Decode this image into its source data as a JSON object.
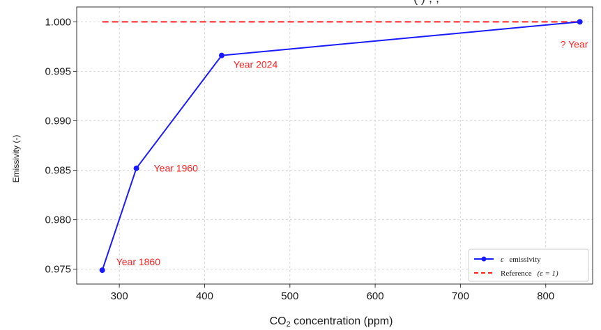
{
  "chart_data": {
    "type": "line",
    "title": "",
    "title_fragment": "(  ) ,    ,",
    "xlabel": "CO₂ concentration (ppm)",
    "xlabel_main": "CO",
    "xlabel_sub": "2",
    "xlabel_rest": " concentration (ppm)",
    "ylabel": "Emissivity (-)",
    "xlim": [
      250,
      855
    ],
    "ylim": [
      0.9735,
      1.0015
    ],
    "x_ticks": [
      300,
      400,
      500,
      600,
      700,
      800
    ],
    "x_tick_labels": [
      "300",
      "400",
      "500",
      "600",
      "700",
      "800"
    ],
    "y_ticks": [
      0.975,
      0.98,
      0.985,
      0.99,
      0.995,
      1.0
    ],
    "y_tick_labels": [
      "0.975",
      "0.980",
      "0.985",
      "0.990",
      "0.995",
      "1.000"
    ],
    "grid": true,
    "legend_position": "lower right",
    "series": [
      {
        "name": "ε  emissivity",
        "color": "#1a1aff",
        "style": "solid",
        "marker": "circle",
        "x": [
          280,
          320,
          420,
          840
        ],
        "y": [
          0.9749,
          0.9852,
          0.9966,
          1.0
        ]
      },
      {
        "name": "Reference  (ε = 1)",
        "color": "#ff2020",
        "style": "dashed",
        "x": [
          280,
          840
        ],
        "y": [
          1.0,
          1.0
        ]
      }
    ],
    "annotations": [
      {
        "text": "Year 1860",
        "x": 280,
        "y": 0.9749,
        "color": "#ff2020"
      },
      {
        "text": "Year 1960",
        "x": 320,
        "y": 0.9852,
        "color": "#ff2020"
      },
      {
        "text": "Year 2024",
        "x": 420,
        "y": 0.9966,
        "color": "#ff2020"
      },
      {
        "text": "? Year",
        "x": 840,
        "y": 1.0,
        "color": "#ff2020"
      }
    ],
    "legend": [
      {
        "label_symbol": "ε",
        "label_text": "emissivity",
        "color": "#1a1aff",
        "style": "solid"
      },
      {
        "label_text": "Reference",
        "label_symbol": "(ε = 1)",
        "color": "#ff2020",
        "style": "dashed"
      }
    ]
  }
}
